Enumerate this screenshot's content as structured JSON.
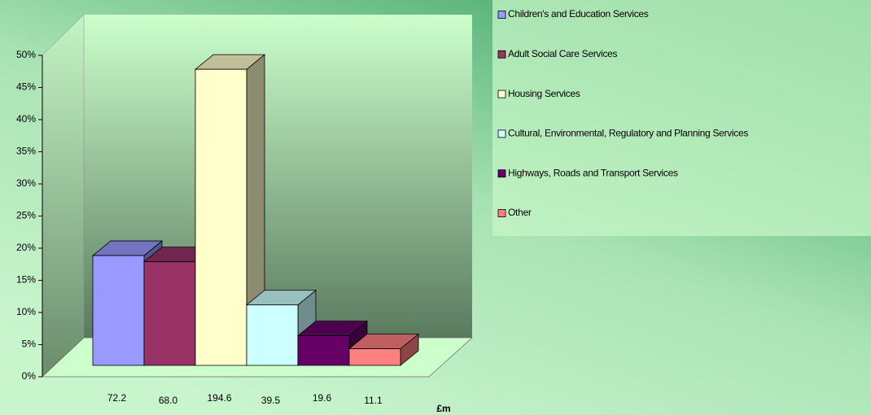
{
  "chart_data": {
    "type": "bar3d",
    "categories": [
      "72.2",
      "68.0",
      "194.6",
      "39.5",
      "19.6",
      "11.1"
    ],
    "values": [
      17.8,
      16.8,
      48.0,
      9.8,
      4.8,
      2.7
    ],
    "colors": [
      "#9999ff",
      "#993366",
      "#ffffcc",
      "#ccffff",
      "#660066",
      "#ff8080"
    ],
    "legend": [
      "Children's and Education Services",
      "Adult Social Care Services",
      "Housing Services",
      "Cultural, Environmental, Regulatory and Planning Services",
      "Highways, Roads and Transport Services",
      "Other"
    ],
    "xlabel": "£m",
    "ylim": [
      0,
      50
    ],
    "yticks": [
      {
        "value": 0,
        "label": "0%"
      },
      {
        "value": 5,
        "label": "5%"
      },
      {
        "value": 10,
        "label": "10%"
      },
      {
        "value": 15,
        "label": "15%"
      },
      {
        "value": 20,
        "label": "20%"
      },
      {
        "value": 25,
        "label": "25%"
      },
      {
        "value": 30,
        "label": "30%"
      },
      {
        "value": 35,
        "label": "35%"
      },
      {
        "value": 40,
        "label": "40%"
      },
      {
        "value": 45,
        "label": "45%"
      },
      {
        "value": 50,
        "label": "50%"
      }
    ]
  }
}
